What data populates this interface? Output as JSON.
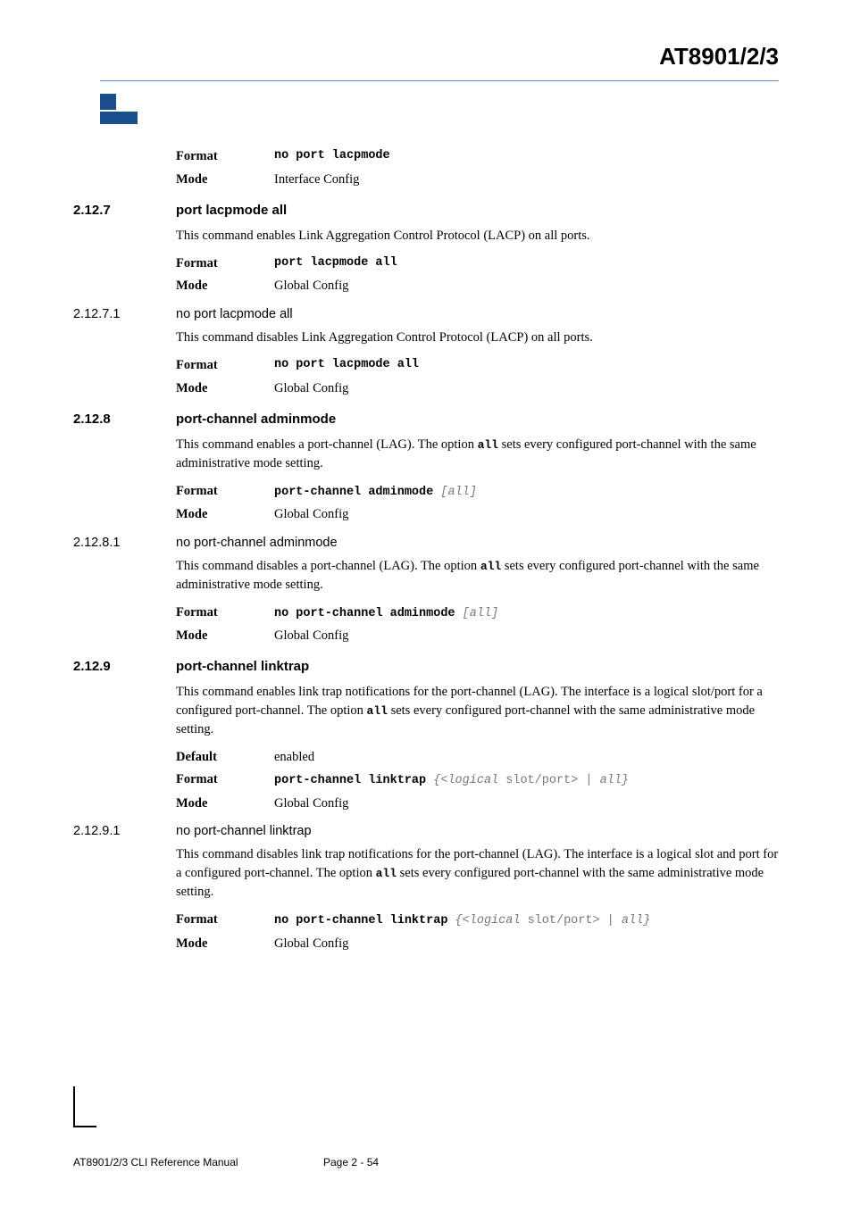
{
  "header": {
    "title": "AT8901/2/3"
  },
  "intro": {
    "format_label": "Format",
    "format_value": "no port lacpmode",
    "mode_label": "Mode",
    "mode_value": "Interface Config"
  },
  "s2_12_7": {
    "num": "2.12.7",
    "title": "port lacpmode all",
    "desc": "This command enables Link Aggregation Control Protocol (LACP) on all ports.",
    "format_label": "Format",
    "format_value": "port lacpmode all",
    "mode_label": "Mode",
    "mode_value": "Global Config"
  },
  "s2_12_7_1": {
    "num": "2.12.7.1",
    "title": "no port lacpmode all",
    "desc": "This command disables Link Aggregation Control Protocol (LACP) on all ports.",
    "format_label": "Format",
    "format_value": "no port lacpmode all",
    "mode_label": "Mode",
    "mode_value": "Global Config"
  },
  "s2_12_8": {
    "num": "2.12.8",
    "title": "port-channel adminmode",
    "desc_pre": "This command enables a port-channel (LAG). The option ",
    "desc_code": "all",
    "desc_post": "  sets every configured port-channel with the same administrative mode setting.",
    "format_label": "Format",
    "format_value": "port-channel adminmode ",
    "format_italic": "[all]",
    "mode_label": "Mode",
    "mode_value": "Global Config"
  },
  "s2_12_8_1": {
    "num": "2.12.8.1",
    "title": "no port-channel adminmode",
    "desc_pre": "This command disables a port-channel (LAG). The option ",
    "desc_code": "all",
    "desc_post": " sets every configured port-channel with the same administrative mode setting.",
    "format_label": "Format",
    "format_value": "no port-channel adminmode ",
    "format_italic": "[all]",
    "mode_label": "Mode",
    "mode_value": "Global Config"
  },
  "s2_12_9": {
    "num": "2.12.9",
    "title": "port-channel linktrap",
    "desc_pre": "This command enables link trap notifications for the port-channel (LAG). The interface is a logical slot/port for a configured port-channel. The option ",
    "desc_code": "all",
    "desc_post": " sets every configured port-channel with the same administrative mode setting.",
    "default_label": "Default",
    "default_value": "enabled",
    "format_label": "Format",
    "format_value": "port-channel linktrap ",
    "format_italic_1": "{<logical ",
    "format_roman": "slot/port",
    "format_italic_2": "> | all}",
    "mode_label": "Mode",
    "mode_value": "Global Config"
  },
  "s2_12_9_1": {
    "num": "2.12.9.1",
    "title": "no port-channel linktrap",
    "desc_pre": "This command disables link trap notifications for the port-channel (LAG). The interface is a logical slot and port for a configured port-channel. The option ",
    "desc_code": "all",
    "desc_post": "  sets every configured port-channel with the same administrative mode setting.",
    "format_label": "Format",
    "format_value": "no port-channel linktrap ",
    "format_italic_1": "{<logical ",
    "format_roman": "slot/port",
    "format_italic_2": "> | all}",
    "mode_label": "Mode",
    "mode_value": "Global Config"
  },
  "footer": {
    "left": "AT8901/2/3 CLI Reference Manual",
    "center": "Page 2 - 54"
  }
}
